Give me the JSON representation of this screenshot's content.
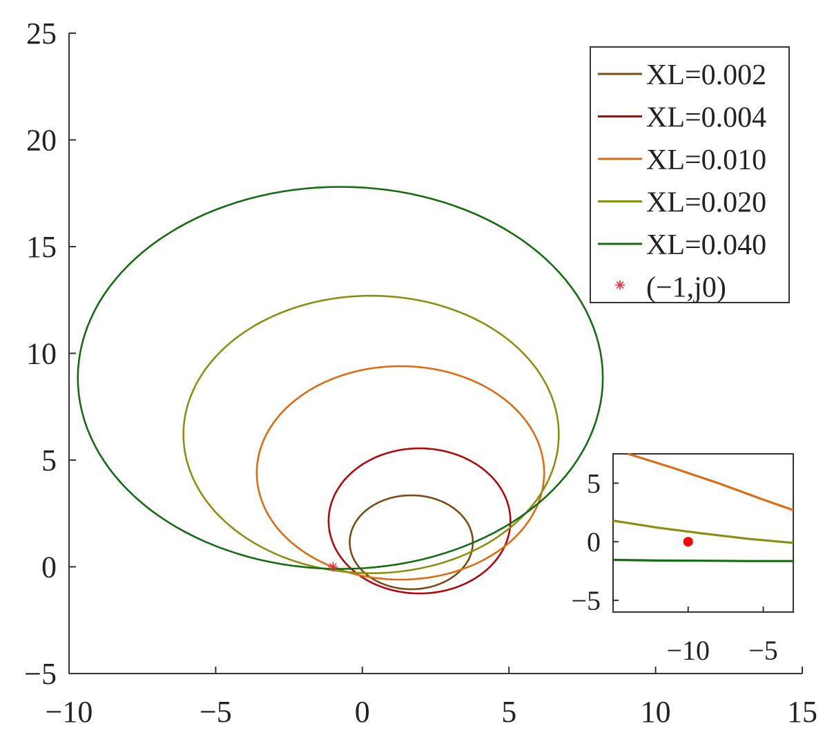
{
  "chart_data": [
    {
      "type": "line",
      "panel": "main",
      "xlim": [
        -10,
        15
      ],
      "ylim": [
        -5,
        25
      ],
      "x_ticks": [
        -10,
        -5,
        0,
        5,
        10,
        15
      ],
      "y_ticks": [
        -5,
        0,
        5,
        10,
        15,
        20,
        25
      ],
      "x_tick_labels": [
        "−10",
        "−5",
        "0",
        "5",
        "10",
        "15"
      ],
      "y_tick_labels": [
        "−5",
        "0",
        "5",
        "10",
        "15",
        "20",
        "25"
      ],
      "legend_position": "top-right",
      "grid": false,
      "series": [
        {
          "name": "XL=0.002",
          "color": "#7b4a16",
          "center": [
            1.67,
            1.15
          ],
          "radii": [
            2.1,
            2.2
          ]
        },
        {
          "name": "XL=0.004",
          "color": "#b3060c",
          "center": [
            1.95,
            2.15
          ],
          "radii": [
            3.1,
            3.4
          ]
        },
        {
          "name": "XL=0.010",
          "color": "#de6b10",
          "center": [
            1.3,
            4.4
          ],
          "radii": [
            4.9,
            5.0
          ]
        },
        {
          "name": "XL=0.020",
          "color": "#8a8f10",
          "center": [
            0.3,
            6.2
          ],
          "radii": [
            6.4,
            6.5
          ]
        },
        {
          "name": "XL=0.040",
          "color": "#146b10",
          "center": [
            -0.75,
            8.85
          ],
          "radii": [
            8.95,
            8.95
          ]
        }
      ],
      "points": [
        {
          "name": "(−1,j0)",
          "x": -1,
          "y": 0,
          "color": "#e8333a",
          "marker": "*"
        }
      ]
    },
    {
      "type": "line",
      "panel": "inset",
      "xlim": [
        -15,
        -3
      ],
      "ylim": [
        -6,
        7.5
      ],
      "x_ticks": [
        -10,
        -5
      ],
      "y_ticks": [
        -5,
        0,
        5
      ],
      "x_tick_labels": [
        "−10",
        "−5"
      ],
      "y_tick_labels": [
        "−5",
        "0",
        "5"
      ],
      "series": [
        {
          "color": "#de6b10",
          "x": [
            -14.0,
            -11.0,
            -8.0,
            -5.0,
            -3.0
          ],
          "y": [
            7.5,
            6.3,
            5.0,
            3.6,
            2.7
          ]
        },
        {
          "color": "#8a8f10",
          "x": [
            -15.0,
            -12.0,
            -9.0,
            -6.0,
            -3.0
          ],
          "y": [
            1.8,
            1.2,
            0.7,
            0.25,
            -0.1
          ]
        },
        {
          "color": "#146b10",
          "x": [
            -15.0,
            -12.0,
            -9.0,
            -6.0,
            -3.0
          ],
          "y": [
            -1.55,
            -1.6,
            -1.62,
            -1.65,
            -1.65
          ]
        }
      ],
      "points": [
        {
          "x": -10,
          "y": 0,
          "color": "#ff0000",
          "marker": "o"
        }
      ]
    }
  ]
}
